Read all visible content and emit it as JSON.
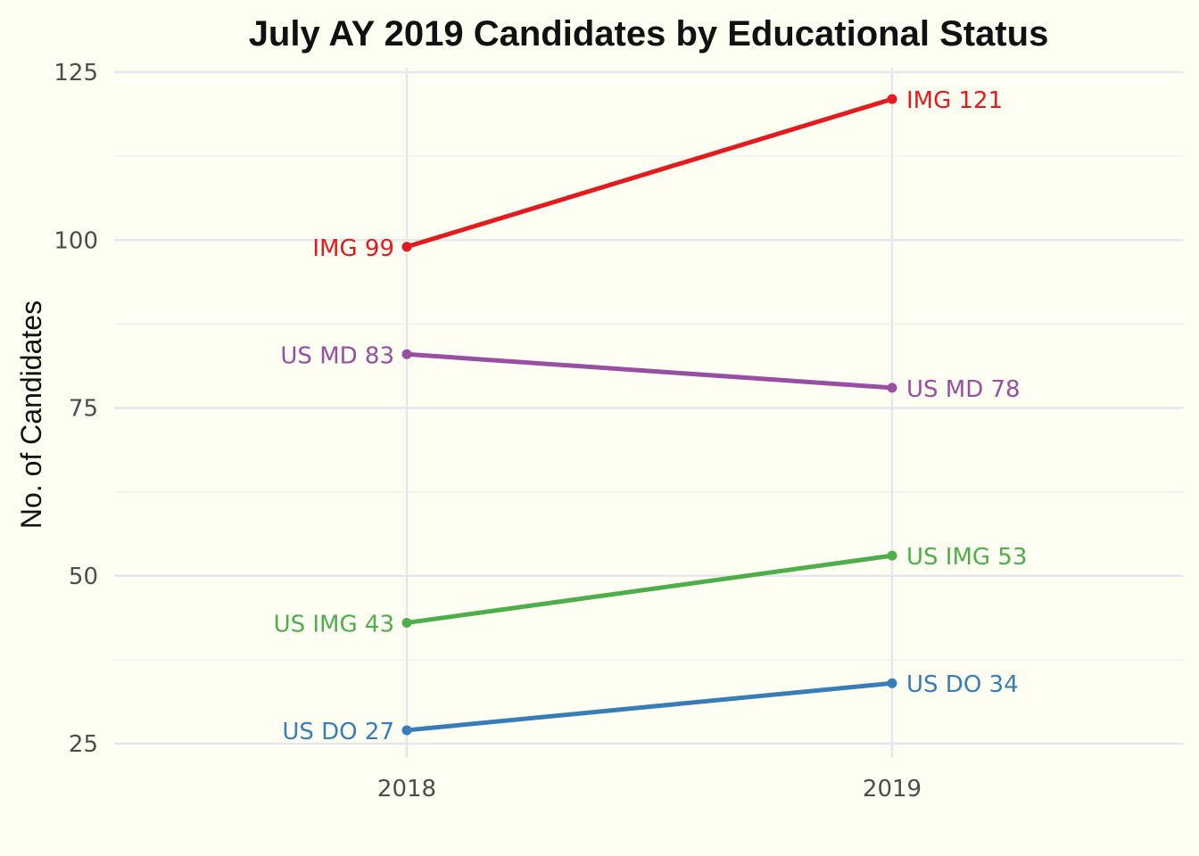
{
  "chart_data": {
    "type": "line",
    "title": "July AY 2019 Candidates by Educational Status",
    "xlabel": "",
    "ylabel": "No. of Candidates",
    "categories": [
      "2018",
      "2019"
    ],
    "ylim": [
      23,
      126
    ],
    "yticks": [
      25,
      50,
      75,
      100,
      125
    ],
    "grid": true,
    "legend": "none",
    "series": [
      {
        "name": "IMG",
        "values": [
          99,
          121
        ],
        "color": "#e41a1c",
        "labels": [
          "IMG 99",
          "IMG 121"
        ]
      },
      {
        "name": "US MD",
        "values": [
          83,
          78
        ],
        "color": "#984ea3",
        "labels": [
          "US MD 83",
          "US MD 78"
        ]
      },
      {
        "name": "US IMG",
        "values": [
          43,
          53
        ],
        "color": "#4daf4a",
        "labels": [
          "US IMG 43",
          "US IMG 53"
        ]
      },
      {
        "name": "US DO",
        "values": [
          27,
          34
        ],
        "color": "#377eb8",
        "labels": [
          "US DO 27",
          "US DO 34"
        ]
      }
    ]
  }
}
